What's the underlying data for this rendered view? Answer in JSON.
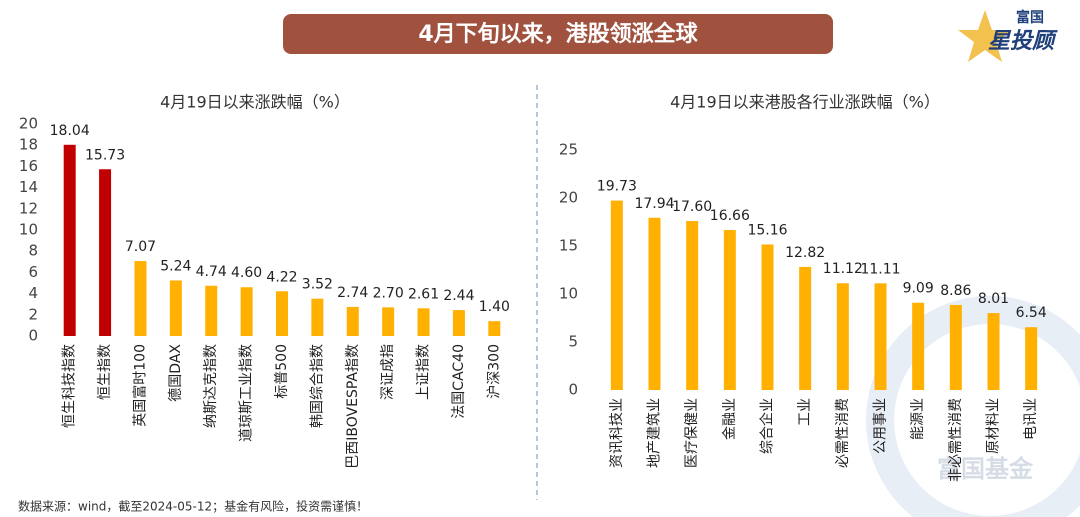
{
  "header": {
    "title": "4月下旬以来，港股领涨全球"
  },
  "logo": {
    "top": "富国",
    "main": "星投顾"
  },
  "watermark": "富国基金",
  "footnote": "数据来源：wind，截至2024-05-12；基金有风险，投资需谨慎！",
  "chart_data": [
    {
      "type": "bar",
      "title": "4月19日以来涨跌幅（%）",
      "categories": [
        "恒生科技指数",
        "恒生指数",
        "英国富时100",
        "德国DAX",
        "纳斯达克指数",
        "道琼斯工业指数",
        "标普500",
        "韩国综合指数",
        "巴西IBOVESPA指数",
        "深证成指",
        "上证指数",
        "法国CAC40",
        "沪深300"
      ],
      "values": [
        18.04,
        15.73,
        7.07,
        5.24,
        4.74,
        4.6,
        4.22,
        3.52,
        2.74,
        2.7,
        2.61,
        2.44,
        1.4
      ],
      "value_labels": [
        "18.04",
        "15.73",
        "7.07",
        "5.24",
        "4.74",
        "4.60",
        "4.22",
        "3.52",
        "2.74",
        "2.70",
        "2.61",
        "2.44",
        "1.40"
      ],
      "colors": [
        "#c00000",
        "#c00000",
        "#ffb000",
        "#ffb000",
        "#ffb000",
        "#ffb000",
        "#ffb000",
        "#ffb000",
        "#ffb000",
        "#ffb000",
        "#ffb000",
        "#ffb000",
        "#ffb000"
      ],
      "ylim": [
        0,
        20
      ],
      "yticks": [
        0,
        2,
        4,
        6,
        8,
        10,
        12,
        14,
        16,
        18,
        20
      ],
      "grid": false
    },
    {
      "type": "bar",
      "title": "4月19日以来港股各行业涨跌幅（%）",
      "categories": [
        "资讯科技业",
        "地产建筑业",
        "医疗保健业",
        "金融业",
        "综合企业",
        "工业",
        "必需性消费",
        "公用事业",
        "能源业",
        "非必需性消费",
        "原材料业",
        "电讯业"
      ],
      "values": [
        19.73,
        17.94,
        17.6,
        16.66,
        15.16,
        12.82,
        11.12,
        11.11,
        9.09,
        8.86,
        8.01,
        6.54
      ],
      "value_labels": [
        "19.73",
        "17.94",
        "17.60",
        "16.66",
        "15.16",
        "12.82",
        "11.12",
        "11.11",
        "9.09",
        "8.86",
        "8.01",
        "6.54"
      ],
      "color": "#ffb000",
      "ylim": [
        0,
        25
      ],
      "yticks": [
        0,
        5,
        10,
        15,
        20,
        25
      ],
      "grid": false
    }
  ]
}
